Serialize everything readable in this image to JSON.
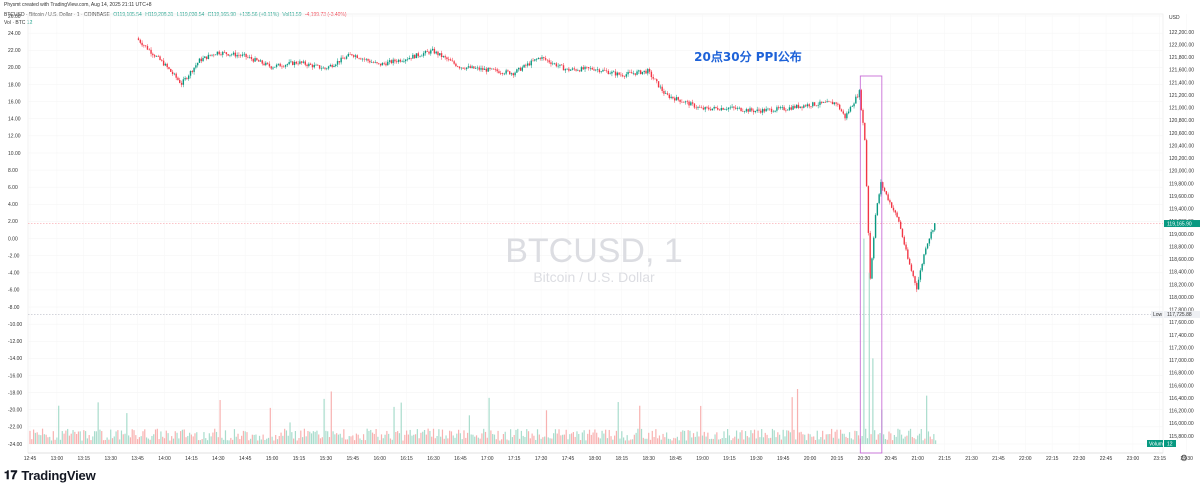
{
  "header": {
    "created": "Physmt created with TradingView.com, Aug 14, 2025 21:11 UTC+8",
    "symbol": "BTCUSD · Bitcoin / U.S. Dollar · 1 · COINBASE",
    "open": "O119,105.54",
    "high": "H119,208.31",
    "low": "L119,030.54",
    "close": "C119,165.90",
    "change": "+135.56 (+0.11%)",
    "vol_mid": "Vol11.59",
    "change2": "-4,199.73 (-3.40%)",
    "vol_label": "Vol · BTC",
    "vol_value": "12"
  },
  "colors": {
    "up": "#089981",
    "down": "#f23645",
    "annotation": "#1e62d8",
    "box": "#c86dd7"
  },
  "watermark": {
    "symbol": "BTCUSD, 1",
    "name": "Bitcoin / U.S. Dollar"
  },
  "annotation": {
    "text": "20点30分 PPI公布"
  },
  "price_axis": {
    "currency": "USD",
    "last_price": "119,165.90",
    "low_label": "Low",
    "low_value": "117,725.88",
    "volume_label": "Volume",
    "volume_value": "12"
  },
  "footer": {
    "brand": "TradingView",
    "icon": "tradingview-logo-icon",
    "settings_icon": "gear-icon"
  },
  "chart_data": {
    "type": "candlestick",
    "title": "BTCUSD, 1",
    "xlabel": "",
    "ylabel": "",
    "x_ticks": [
      "12:45",
      "13:00",
      "13:15",
      "13:30",
      "13:45",
      "14:00",
      "14:15",
      "14:30",
      "14:45",
      "15:00",
      "15:15",
      "15:30",
      "15:45",
      "16:00",
      "16:15",
      "16:30",
      "16:45",
      "17:00",
      "17:15",
      "17:30",
      "17:45",
      "18:00",
      "18:15",
      "18:30",
      "18:45",
      "19:00",
      "19:15",
      "19:30",
      "19:45",
      "20:00",
      "20:15",
      "20:30",
      "20:45",
      "21:00",
      "21:15",
      "21:30",
      "21:45",
      "22:00",
      "22:15",
      "22:30",
      "22:45",
      "23:00",
      "23:15",
      "23:30",
      "23:45",
      "15",
      "00:15",
      "00:30",
      "00:45",
      "01:00",
      "01:1"
    ],
    "right_axis_ticks": [
      "122,200.00",
      "122,000.00",
      "121,800.00",
      "121,600.00",
      "121,400.00",
      "121,200.00",
      "121,000.00",
      "120,800.00",
      "120,600.00",
      "120,400.00",
      "120,200.00",
      "120,000.00",
      "119,800.00",
      "119,600.00",
      "119,400.00",
      "119,200.00",
      "119,000.00",
      "118,800.00",
      "118,600.00",
      "118,400.00",
      "118,200.00",
      "118,000.00",
      "117,800.00",
      "117,600.00",
      "117,400.00",
      "117,200.00",
      "117,000.00",
      "116,800.00",
      "116,600.00",
      "116,400.00",
      "116,200.00",
      "116,000.00",
      "115,800.00"
    ],
    "left_axis_ticks": [
      "26.00",
      "24.00",
      "22.00",
      "20.00",
      "18.00",
      "16.00",
      "14.00",
      "12.00",
      "10.00",
      "8.00",
      "6.00",
      "4.00",
      "2.00",
      "0.00",
      "-2.00",
      "-4.00",
      "-6.00",
      "-8.00",
      "-10.00",
      "-12.00",
      "-14.00",
      "-16.00",
      "-18.00",
      "-20.00",
      "-22.00",
      "-24.00"
    ],
    "price_ylim": [
      115800,
      122200
    ],
    "left_ylim": [
      -24,
      26
    ],
    "price_path": [
      {
        "t": "13:45",
        "price": 122100
      },
      {
        "t": "14:00",
        "price": 121700
      },
      {
        "t": "14:10",
        "price": 121380
      },
      {
        "t": "14:20",
        "price": 121750
      },
      {
        "t": "14:30",
        "price": 121880
      },
      {
        "t": "14:45",
        "price": 121820
      },
      {
        "t": "15:00",
        "price": 121650
      },
      {
        "t": "15:15",
        "price": 121720
      },
      {
        "t": "15:30",
        "price": 121620
      },
      {
        "t": "15:45",
        "price": 121850
      },
      {
        "t": "16:00",
        "price": 121680
      },
      {
        "t": "16:15",
        "price": 121780
      },
      {
        "t": "16:30",
        "price": 121900
      },
      {
        "t": "16:45",
        "price": 121650
      },
      {
        "t": "17:00",
        "price": 121600
      },
      {
        "t": "17:15",
        "price": 121550
      },
      {
        "t": "17:30",
        "price": 121800
      },
      {
        "t": "17:45",
        "price": 121600
      },
      {
        "t": "18:00",
        "price": 121620
      },
      {
        "t": "18:15",
        "price": 121520
      },
      {
        "t": "18:30",
        "price": 121580
      },
      {
        "t": "18:40",
        "price": 121200
      },
      {
        "t": "18:50",
        "price": 121100
      },
      {
        "t": "19:00",
        "price": 120980
      },
      {
        "t": "19:15",
        "price": 121000
      },
      {
        "t": "19:30",
        "price": 120950
      },
      {
        "t": "19:45",
        "price": 120980
      },
      {
        "t": "20:00",
        "price": 121050
      },
      {
        "t": "20:15",
        "price": 121080
      },
      {
        "t": "20:20",
        "price": 120850
      },
      {
        "t": "20:25",
        "price": 121100
      },
      {
        "t": "20:28",
        "price": 121250
      },
      {
        "t": "20:31",
        "price": 120500
      },
      {
        "t": "20:34",
        "price": 118300
      },
      {
        "t": "20:37",
        "price": 119300
      },
      {
        "t": "20:40",
        "price": 119800
      },
      {
        "t": "20:45",
        "price": 119500
      },
      {
        "t": "20:50",
        "price": 119200
      },
      {
        "t": "20:55",
        "price": 118600
      },
      {
        "t": "21:00",
        "price": 118150
      },
      {
        "t": "21:05",
        "price": 118800
      },
      {
        "t": "21:10",
        "price": 119166
      }
    ],
    "volume": [
      {
        "t": "20:30",
        "value": 24
      },
      {
        "t": "20:33",
        "value": 20
      },
      {
        "t": "20:35",
        "value": 10
      },
      {
        "t": "20:40",
        "value": 4
      }
    ],
    "highlight_box": {
      "t_start": "20:28",
      "t_end": "20:40"
    },
    "reference_lines": [
      {
        "label": "Last",
        "price": 119166
      },
      {
        "label": "Low",
        "price": 117726
      }
    ],
    "grid": true,
    "legend": "top-left"
  }
}
